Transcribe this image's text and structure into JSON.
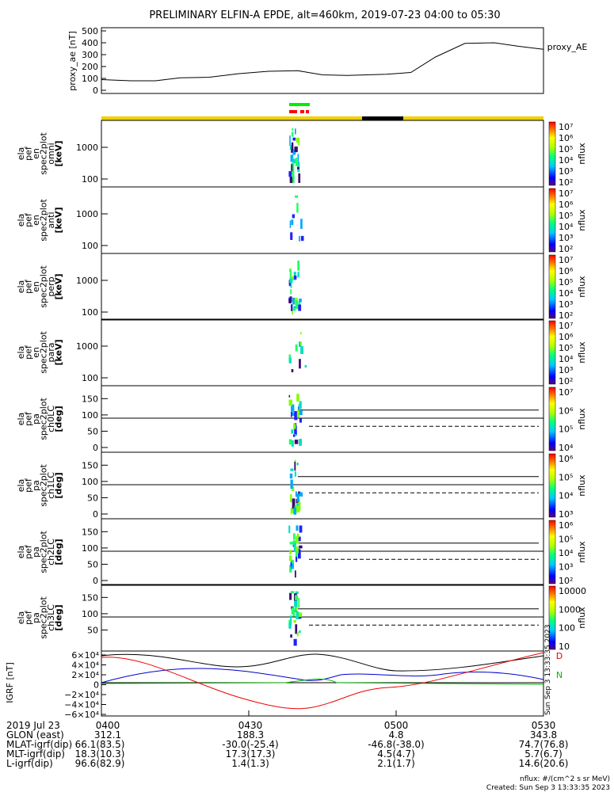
{
  "title": "PRELIMINARY ELFIN-A EPDE, alt=460km, 2019-07-23 04:00 to 05:30",
  "chart_data": {
    "type": "multi-panel spectrogram",
    "x_range": [
      "2019-07-23 04:00",
      "2019-07-23 05:30"
    ],
    "proxy_ae": {
      "ylabel": "proxy_ae [nT]",
      "legend": "proxy_AE",
      "yticks": [
        "500",
        "400",
        "300",
        "200",
        "100",
        "0"
      ],
      "ylim": [
        0,
        550
      ],
      "x_minutes": [
        0,
        6,
        11,
        16,
        22,
        28,
        34,
        40,
        45,
        50,
        54,
        58,
        63,
        68,
        74,
        80,
        85,
        90
      ],
      "values": [
        90,
        80,
        80,
        105,
        110,
        140,
        160,
        165,
        130,
        125,
        130,
        135,
        150,
        280,
        395,
        400,
        370,
        345
      ]
    },
    "colorbar_ticks_1e7": [
      "10^7",
      "10^6",
      "10^5",
      "10^4",
      "10^3",
      "10^2"
    ],
    "colorbar_label": "nflux",
    "energy_panels": [
      {
        "label": [
          "ela",
          "pef",
          "en",
          "spec2plot",
          "omni",
          "[keV]"
        ],
        "yticks": [
          "1000",
          "100"
        ]
      },
      {
        "label": [
          "ela",
          "pef",
          "en",
          "spec2plot",
          "anti",
          "[keV]"
        ],
        "yticks": [
          "1000",
          "100"
        ]
      },
      {
        "label": [
          "ela",
          "pef",
          "en",
          "spec2plot",
          "perp",
          "[keV]"
        ],
        "yticks": [
          "1000",
          "100"
        ]
      },
      {
        "label": [
          "ela",
          "pef",
          "en",
          "spec2plot",
          "para",
          "[keV]"
        ],
        "yticks": [
          "1000",
          "100"
        ]
      }
    ],
    "pa_panels": [
      {
        "label": [
          "ela",
          "pef",
          "pa",
          "spec2plot",
          "ch0LC",
          "[deg]"
        ],
        "yticks": [
          "150",
          "100",
          "50",
          "0"
        ],
        "colorbar": [
          "10^7",
          "10^6",
          "10^5",
          "10^4"
        ]
      },
      {
        "label": [
          "ela",
          "pef",
          "pa",
          "spec2plot",
          "ch1LC",
          "[deg]"
        ],
        "yticks": [
          "150",
          "100",
          "50",
          "0"
        ],
        "colorbar": [
          "10^6",
          "10^5",
          "10^4",
          "10^3"
        ]
      },
      {
        "label": [
          "ela",
          "pef",
          "pa",
          "spec2plot",
          "ch2LC",
          "[deg]"
        ],
        "yticks": [
          "150",
          "100",
          "50",
          "0"
        ],
        "colorbar": [
          "10^6",
          "10^5",
          "10^4",
          "10^3",
          "10^2"
        ]
      },
      {
        "label": [
          "ela",
          "pef",
          "pa",
          "spec2plot",
          "ch3LC",
          "[deg]"
        ],
        "yticks": [
          "150",
          "100",
          "50"
        ],
        "colorbar": [
          "10000",
          "1000",
          "100",
          "10"
        ]
      }
    ],
    "igrf": {
      "ylabel": "IGRF [nT]",
      "yticks": [
        "6×10^4",
        "4×10^4",
        "2×10^4",
        "0",
        "−2×10^4",
        "−4×10^4",
        "−6×10^4"
      ],
      "ylim": [
        -60000,
        60000
      ],
      "legend": [
        "D",
        "N"
      ],
      "side_text": "Sun Sep  3 13:33:35 2023"
    }
  },
  "bottom_table": {
    "row_labels": [
      "2019 Jul 23",
      "GLON (east)",
      "MLAT-igrf(dip)",
      "MLT-igrf(dip)",
      "L-igrf(dip)"
    ],
    "columns": [
      {
        "time": "0400",
        "values": [
          "312.1",
          "66.1(83.5)",
          "18.3(10.3)",
          "96.6(82.9)"
        ]
      },
      {
        "time": "0430",
        "values": [
          "188.3",
          "-30.0(-25.4)",
          "17.3(17.3)",
          "1.4(1.3)"
        ]
      },
      {
        "time": "0500",
        "values": [
          "4.8",
          "-46.8(-38.0)",
          "4.5(4.7)",
          "2.1(1.7)"
        ]
      },
      {
        "time": "0530",
        "values": [
          "343.8",
          "74.7(76.8)",
          "5.7(6.7)",
          "14.6(20.6)"
        ]
      }
    ]
  },
  "footer": {
    "units": "nflux: #/(cm^2 s sr MeV)",
    "created": "Created: Sun Sep  3 13:33:35 2023"
  }
}
